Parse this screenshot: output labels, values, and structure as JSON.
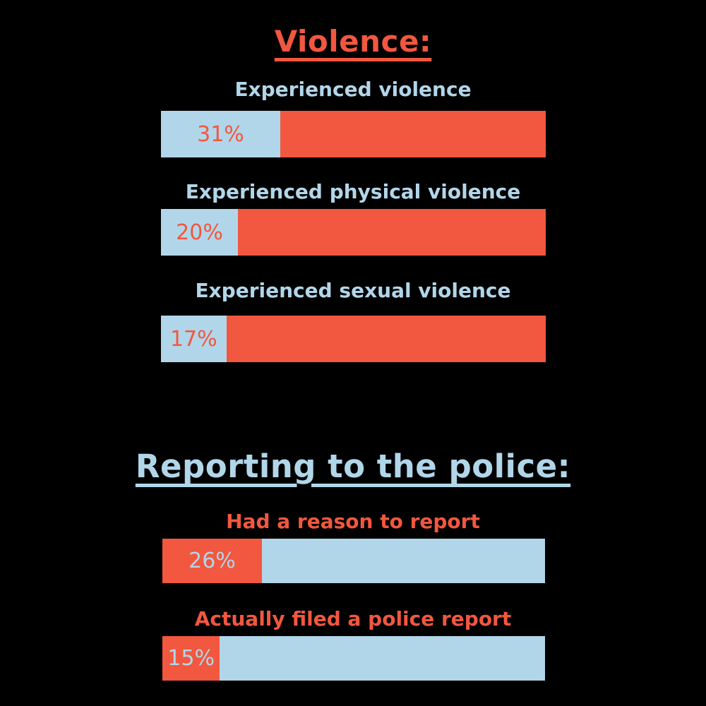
{
  "colors": {
    "coral": "#F2573F",
    "blue": "#B2D6E9",
    "background": "#000000"
  },
  "chart_data": [
    {
      "type": "bar",
      "orientation": "horizontal",
      "title": "Violence:",
      "title_color": "#F2573F",
      "xlim": [
        0,
        100
      ],
      "bar_track_color": "#F2573F",
      "bar_fill_color": "#B2D6E9",
      "bars": [
        {
          "label": "Experienced violence",
          "value": 31,
          "value_label": "31%"
        },
        {
          "label": "Experienced physical violence",
          "value": 20,
          "value_label": "20%"
        },
        {
          "label": "Experienced sexual violence",
          "value": 17,
          "value_label": "17%"
        }
      ]
    },
    {
      "type": "bar",
      "orientation": "horizontal",
      "title": "Reporting to the police:",
      "title_color": "#B2D6E9",
      "xlim": [
        0,
        100
      ],
      "bar_track_color": "#B2D6E9",
      "bar_fill_color": "#F2573F",
      "bars": [
        {
          "label": "Had a reason to report",
          "value": 26,
          "value_label": "26%"
        },
        {
          "label": "Actually filed a police report",
          "value": 15,
          "value_label": "15%"
        }
      ]
    }
  ]
}
